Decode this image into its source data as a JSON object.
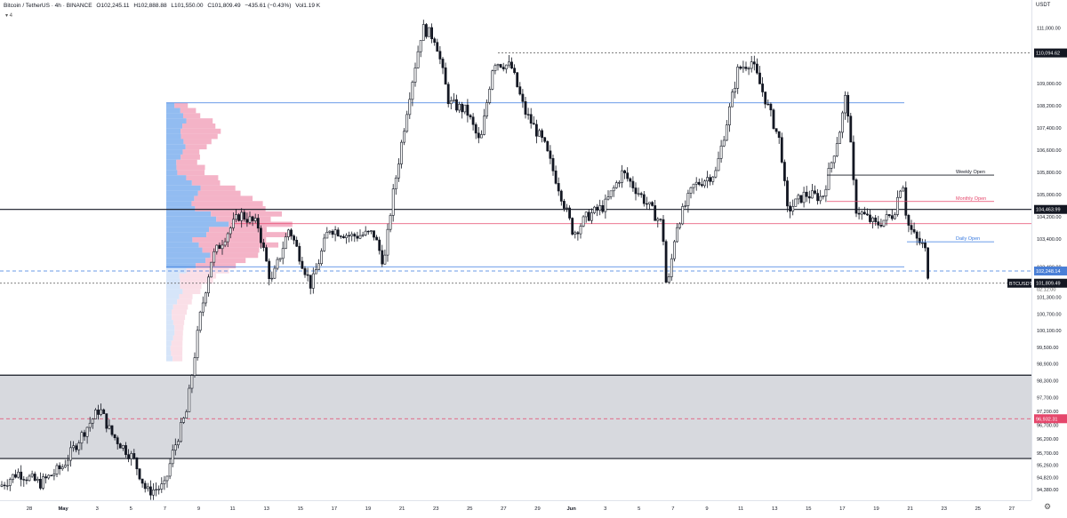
{
  "header": {
    "symbol": "Bitcoin / TetherUS · 4h · BINANCE",
    "open": "O102,245.11",
    "high": "H102,888.88",
    "low": "L101,550.00",
    "close": "C101,809.49",
    "change": "−435.61 (−0.43%)",
    "volume": "Vol1.19 K",
    "indicator": "▾ 4"
  },
  "axis": {
    "currency": "USDT"
  },
  "chart_data": {
    "type": "candlestick",
    "interval": "4h",
    "ylim": [
      94000,
      112000
    ],
    "y_ticks": [
      "111,000.00",
      "110,094.62",
      "109,000.00",
      "108,200.00",
      "107,400.00",
      "106,600.00",
      "105,800.00",
      "105,000.00",
      "104,463.99",
      "104,200.00",
      "103,400.00",
      "102,400.00",
      "102,248.14",
      "101,809.49",
      "101,300.00",
      "100,700.00",
      "100,100.00",
      "99,500.00",
      "98,900.00",
      "98,300.00",
      "97,700.00",
      "97,200.00",
      "96,932.31",
      "96,700.00",
      "96,200.00",
      "95,700.00",
      "95,260.00",
      "94,820.00",
      "94,380.00"
    ],
    "y_tick_values": [
      111000,
      110094.62,
      109000,
      108200,
      107400,
      106600,
      105800,
      105000,
      104463.99,
      104200,
      103400,
      102400,
      102248.14,
      101809.49,
      101300,
      100700,
      100100,
      99500,
      98900,
      98300,
      97700,
      97200,
      96932.31,
      96700,
      96200,
      95700,
      95260,
      94820,
      94380
    ],
    "x_ticks": [
      "28",
      "May",
      "3",
      "5",
      "7",
      "9",
      "11",
      "13",
      "15",
      "17",
      "19",
      "21",
      "23",
      "25",
      "27",
      "29",
      "Jun",
      "3",
      "5",
      "7",
      "9",
      "11",
      "13",
      "15",
      "17",
      "19",
      "21",
      "23",
      "25",
      "27"
    ],
    "price_labels": [
      {
        "label": "110,094.62",
        "value": 110094.62,
        "color": "#131722",
        "text": "#ffffff"
      },
      {
        "label": "104,463.99",
        "value": 104463.99,
        "color": "#131722",
        "text": "#ffffff"
      },
      {
        "label": "102,248.14",
        "value": 102248.14,
        "color": "#4a7fd6",
        "text": "#ffffff"
      },
      {
        "label": "101,809.49",
        "value": 101809.49,
        "color": "#131722",
        "text": "#ffffff"
      },
      {
        "label": "96,932.31",
        "value": 96932.31,
        "color": "#e5466b",
        "text": "#ffffff"
      }
    ],
    "symbol_tag": "BTCUSDT",
    "countdown": "02:12:00",
    "annotations": [
      {
        "label": "Weekly Open",
        "value": 105700,
        "color": "#131722"
      },
      {
        "label": "Monthly Open",
        "value": 104750,
        "color": "#e5466b"
      },
      {
        "label": "Daily Open",
        "value": 103300,
        "color": "#3a7be0"
      }
    ],
    "levels": [
      {
        "value": 110094.62,
        "style": "dotted",
        "color": "#555555"
      },
      {
        "value": 108300,
        "style": "solid",
        "color": "#3a7be0"
      },
      {
        "value": 104463.99,
        "style": "solid",
        "color": "#131722"
      },
      {
        "value": 103950,
        "style": "solid",
        "color": "#e5466b"
      },
      {
        "value": 102400,
        "style": "solid",
        "color": "#3a7be0"
      },
      {
        "value": 102248.14,
        "style": "dashed",
        "color": "#3a7be0"
      },
      {
        "value": 101809.49,
        "style": "dotted",
        "color": "#555555"
      },
      {
        "value": 98500,
        "style": "solid",
        "color": "#131722"
      },
      {
        "value": 96932.31,
        "style": "dashed",
        "color": "#e5466b"
      },
      {
        "value": 95500,
        "style": "solid",
        "color": "#131722"
      }
    ],
    "zone": {
      "from": 95500,
      "to": 98500,
      "color": "#c9ccd3"
    },
    "path_points": [
      [
        0,
        94500
      ],
      [
        20,
        95000
      ],
      [
        45,
        94600
      ],
      [
        70,
        95200
      ],
      [
        95,
        96500
      ],
      [
        112,
        97300
      ],
      [
        125,
        96400
      ],
      [
        150,
        95500
      ],
      [
        165,
        94300
      ],
      [
        185,
        94500
      ],
      [
        195,
        95800
      ],
      [
        210,
        97200
      ],
      [
        225,
        100600
      ],
      [
        238,
        102700
      ],
      [
        255,
        103600
      ],
      [
        270,
        104300
      ],
      [
        290,
        103900
      ],
      [
        305,
        101800
      ],
      [
        325,
        103800
      ],
      [
        350,
        101700
      ],
      [
        370,
        103800
      ],
      [
        395,
        103500
      ],
      [
        420,
        103600
      ],
      [
        432,
        102500
      ],
      [
        440,
        104600
      ],
      [
        460,
        108500
      ],
      [
        475,
        111000
      ],
      [
        490,
        110600
      ],
      [
        505,
        108300
      ],
      [
        525,
        108000
      ],
      [
        540,
        106800
      ],
      [
        555,
        109800
      ],
      [
        575,
        109600
      ],
      [
        590,
        108000
      ],
      [
        612,
        106800
      ],
      [
        628,
        105300
      ],
      [
        645,
        103600
      ],
      [
        660,
        104200
      ],
      [
        680,
        104600
      ],
      [
        700,
        105800
      ],
      [
        720,
        105000
      ],
      [
        745,
        103900
      ],
      [
        750,
        101400
      ],
      [
        760,
        103800
      ],
      [
        780,
        105300
      ],
      [
        805,
        105800
      ],
      [
        820,
        108000
      ],
      [
        830,
        109500
      ],
      [
        845,
        109800
      ],
      [
        860,
        108500
      ],
      [
        878,
        106800
      ],
      [
        885,
        104400
      ],
      [
        905,
        105000
      ],
      [
        925,
        104900
      ],
      [
        945,
        107400
      ],
      [
        952,
        108700
      ],
      [
        962,
        104500
      ],
      [
        985,
        103900
      ],
      [
        1005,
        104300
      ],
      [
        1015,
        105600
      ],
      [
        1020,
        104000
      ],
      [
        1030,
        103400
      ],
      [
        1040,
        103100
      ],
      [
        1045,
        101800
      ]
    ],
    "volume_profile_rows": 50
  }
}
